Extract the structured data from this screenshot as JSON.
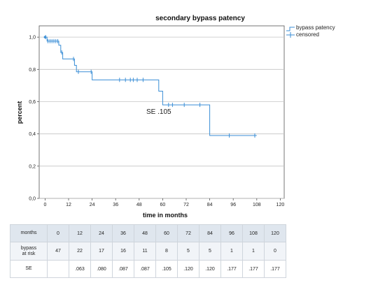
{
  "chart_data": {
    "type": "line",
    "title": "secondary bypass patency",
    "xlabel": "time in months",
    "ylabel": "percent",
    "xlim": [
      -3,
      122
    ],
    "ylim": [
      0,
      1.07
    ],
    "xticks": [
      0,
      12,
      24,
      36,
      48,
      60,
      72,
      84,
      96,
      108,
      120
    ],
    "yticks": [
      0,
      0.2,
      0.4,
      0.6,
      0.8,
      1.0
    ],
    "ytick_labels": [
      "0,0",
      "0,2",
      "0,4",
      "0,6",
      "0,8",
      "1,0"
    ],
    "grid": "horizontal",
    "legend": "top-right",
    "legend_entries": [
      "bypass patency",
      "censored"
    ],
    "series": [
      {
        "name": "bypass patency",
        "color": "#3a8ed6",
        "step_x": [
          0,
          1,
          7,
          8,
          9,
          15,
          16,
          24,
          58,
          60,
          84,
          108
        ],
        "step_y": [
          1.0,
          0.975,
          0.95,
          0.905,
          0.865,
          0.825,
          0.785,
          0.735,
          0.665,
          0.58,
          0.39,
          0.39
        ],
        "censored_x": [
          0.3,
          1.5,
          2.5,
          3.5,
          4.5,
          5.5,
          6.5,
          8.5,
          14.5,
          17,
          23.5,
          38,
          41,
          43.5,
          45,
          47,
          50,
          63,
          65,
          71,
          79,
          94,
          107
        ],
        "censored_y": [
          1.0,
          0.975,
          0.975,
          0.975,
          0.975,
          0.975,
          0.975,
          0.905,
          0.865,
          0.785,
          0.785,
          0.735,
          0.735,
          0.735,
          0.735,
          0.735,
          0.735,
          0.58,
          0.58,
          0.58,
          0.58,
          0.39,
          0.39
        ]
      }
    ],
    "annotations": [
      {
        "text": "SE .105",
        "x": 58,
        "y": 0.525
      }
    ]
  },
  "risk_table": {
    "header_label": "months",
    "months": [
      "0",
      "12",
      "24",
      "36",
      "48",
      "60",
      "72",
      "84",
      "96",
      "108",
      "120"
    ],
    "at_risk_label_line1": "bypass",
    "at_risk_label_line2": "at risk",
    "at_risk": [
      "47",
      "22",
      "17",
      "16",
      "11",
      "8",
      "5",
      "5",
      "1",
      "1",
      "0"
    ],
    "se_label": "SE",
    "se": [
      "",
      ".063",
      ".080",
      ".087",
      ".087",
      ".105",
      ".120",
      ".120",
      ".177",
      ".177",
      ".177"
    ]
  }
}
